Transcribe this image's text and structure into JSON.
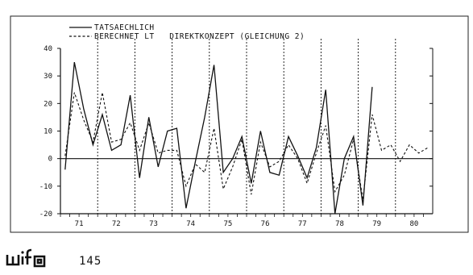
{
  "chart_data": {
    "type": "line",
    "title": "",
    "xlabel": "",
    "ylabel": "",
    "ylim": [
      -20,
      40
    ],
    "yticks": [
      40,
      30,
      20,
      10,
      0,
      -10,
      -20
    ],
    "year_labels": [
      "71",
      "72",
      "73",
      "74",
      "75",
      "76",
      "77",
      "78",
      "79",
      "80"
    ],
    "legend_position": "top-left",
    "series": [
      {
        "name": "TATSAECHLICH",
        "style": "solid",
        "x": [
          71.0,
          71.25,
          71.5,
          71.75,
          72.0,
          72.25,
          72.5,
          72.75,
          73.0,
          73.25,
          73.5,
          73.75,
          74.0,
          74.25,
          74.5,
          74.75,
          75.0,
          75.25,
          75.5,
          75.75,
          76.0,
          76.25,
          76.5,
          76.75,
          77.0,
          77.25,
          77.5,
          77.75,
          78.0,
          78.25,
          78.5,
          78.75,
          79.0,
          79.25
        ],
        "values": [
          -4,
          35,
          18,
          5,
          16,
          3,
          5,
          23,
          -7,
          15,
          -3,
          10,
          11,
          -18,
          -1,
          15,
          34,
          -5,
          0,
          8,
          -9,
          10,
          -5,
          -6,
          8,
          1,
          -7,
          4,
          25,
          -20,
          0,
          8,
          -17,
          26
        ]
      },
      {
        "name": "BERECHNET LT   DIREKTKONZEPT (GLEICHUNG 2)",
        "style": "dashed",
        "x": [
          71.0,
          71.25,
          71.5,
          71.75,
          72.0,
          72.25,
          72.5,
          72.75,
          73.0,
          73.25,
          73.5,
          73.75,
          74.0,
          74.25,
          74.5,
          74.75,
          75.0,
          75.25,
          75.5,
          75.75,
          76.0,
          76.25,
          76.5,
          76.75,
          77.0,
          77.25,
          77.5,
          77.75,
          78.0,
          78.25,
          78.5,
          78.75,
          79.0,
          79.25,
          79.5,
          79.75,
          80.0,
          80.25,
          80.5,
          80.75
        ],
        "values": [
          1,
          24,
          14,
          6,
          24,
          6,
          7,
          13,
          3,
          13,
          2,
          3,
          3,
          -10,
          -2,
          -5,
          11,
          -11,
          -3,
          7,
          -13,
          6,
          -3,
          -1,
          5,
          0,
          -9,
          2,
          12,
          -12,
          -6,
          7,
          -15,
          16,
          3,
          5,
          -1,
          5,
          2,
          4
        ]
      }
    ]
  },
  "legend": {
    "actual_label": "TATSAECHLICH",
    "computed_label": "BERECHNET LT   DIREKTKONZEPT (GLEICHUNG 2)"
  },
  "footer": {
    "logo_text": "wifo",
    "page_number": "145"
  }
}
